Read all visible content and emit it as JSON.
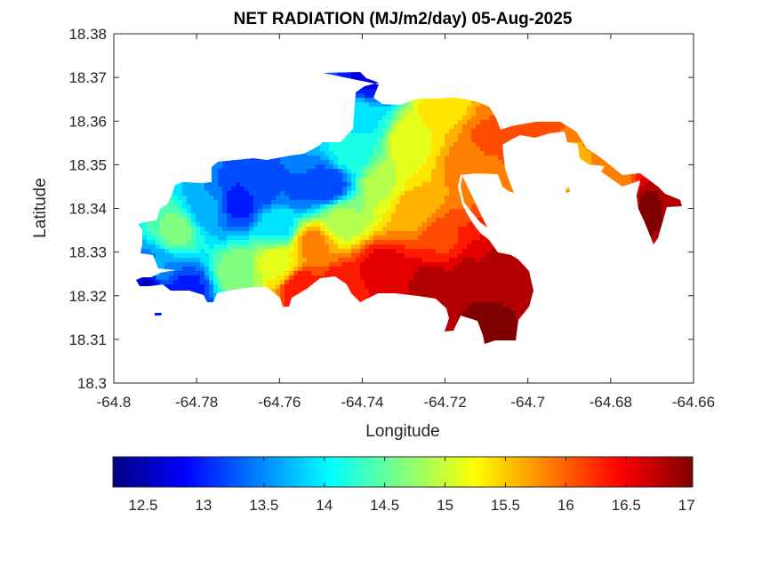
{
  "chart_data": {
    "type": "heatmap",
    "title": "NET RADIATION (MJ/m2/day) 05-Aug-2025",
    "xlabel": "Longitude",
    "ylabel": "Latitude",
    "xlim": [
      -64.8,
      -64.66
    ],
    "ylim": [
      18.3,
      18.38
    ],
    "xticks": [
      -64.8,
      -64.78,
      -64.76,
      -64.74,
      -64.72,
      -64.7,
      -64.68,
      -64.66
    ],
    "xtick_labels": [
      "-64.8",
      "-64.78",
      "-64.76",
      "-64.74",
      "-64.72",
      "-64.7",
      "-64.68",
      "-64.66"
    ],
    "yticks": [
      18.3,
      18.31,
      18.32,
      18.33,
      18.34,
      18.35,
      18.36,
      18.37,
      18.38
    ],
    "ytick_labels": [
      "18.3",
      "18.31",
      "18.32",
      "18.33",
      "18.34",
      "18.35",
      "18.36",
      "18.37",
      "18.38"
    ],
    "colormap": "jet",
    "clim": [
      12.25,
      17.05
    ],
    "colorbar_ticks": [
      12.5,
      13,
      13.5,
      14,
      14.5,
      15,
      15.5,
      16,
      16.5,
      17
    ],
    "colorbar_tick_labels": [
      "12.5",
      "13",
      "13.5",
      "14",
      "14.5",
      "15",
      "15.5",
      "16",
      "16.5",
      "17"
    ],
    "colorbar_placement": "bottom",
    "grid": false,
    "value_anchors": [
      {
        "lon": -64.785,
        "lat": 18.335,
        "value": 14.6
      },
      {
        "lon": -64.79,
        "lat": 18.326,
        "value": 13.6
      },
      {
        "lon": -64.792,
        "lat": 18.323,
        "value": 12.6
      },
      {
        "lon": -64.782,
        "lat": 18.321,
        "value": 13.0
      },
      {
        "lon": -64.777,
        "lat": 18.34,
        "value": 13.6
      },
      {
        "lon": -64.77,
        "lat": 18.341,
        "value": 13.0
      },
      {
        "lon": -64.765,
        "lat": 18.345,
        "value": 13.1
      },
      {
        "lon": -64.755,
        "lat": 18.344,
        "value": 13.3
      },
      {
        "lon": -64.748,
        "lat": 18.345,
        "value": 13.1
      },
      {
        "lon": -64.76,
        "lat": 18.336,
        "value": 14.0
      },
      {
        "lon": -64.742,
        "lat": 18.353,
        "value": 14.2
      },
      {
        "lon": -64.74,
        "lat": 18.36,
        "value": 14.0
      },
      {
        "lon": -64.738,
        "lat": 18.37,
        "value": 12.8
      },
      {
        "lon": -64.745,
        "lat": 18.338,
        "value": 14.8
      },
      {
        "lon": -64.735,
        "lat": 18.345,
        "value": 15.0
      },
      {
        "lon": -64.728,
        "lat": 18.355,
        "value": 15.2
      },
      {
        "lon": -64.72,
        "lat": 18.363,
        "value": 15.4
      },
      {
        "lon": -64.77,
        "lat": 18.325,
        "value": 14.7
      },
      {
        "lon": -64.76,
        "lat": 18.327,
        "value": 15.2
      },
      {
        "lon": -64.752,
        "lat": 18.332,
        "value": 15.8
      },
      {
        "lon": -64.728,
        "lat": 18.34,
        "value": 15.6
      },
      {
        "lon": -64.715,
        "lat": 18.35,
        "value": 15.8
      },
      {
        "lon": -64.71,
        "lat": 18.356,
        "value": 16.0
      },
      {
        "lon": -64.7,
        "lat": 18.357,
        "value": 16.2
      },
      {
        "lon": -64.755,
        "lat": 18.322,
        "value": 16.4
      },
      {
        "lon": -64.745,
        "lat": 18.322,
        "value": 16.4
      },
      {
        "lon": -64.735,
        "lat": 18.326,
        "value": 16.6
      },
      {
        "lon": -64.722,
        "lat": 18.322,
        "value": 16.9
      },
      {
        "lon": -64.715,
        "lat": 18.326,
        "value": 16.7
      },
      {
        "lon": -64.71,
        "lat": 18.314,
        "value": 17.0
      },
      {
        "lon": -64.705,
        "lat": 18.325,
        "value": 16.8
      },
      {
        "lon": -64.72,
        "lat": 18.332,
        "value": 16.2
      },
      {
        "lon": -64.69,
        "lat": 18.35,
        "value": 15.7
      },
      {
        "lon": -64.68,
        "lat": 18.345,
        "value": 15.8
      },
      {
        "lon": -64.67,
        "lat": 18.34,
        "value": 17.0
      },
      {
        "lon": -64.665,
        "lat": 18.341,
        "value": 16.8
      }
    ]
  }
}
